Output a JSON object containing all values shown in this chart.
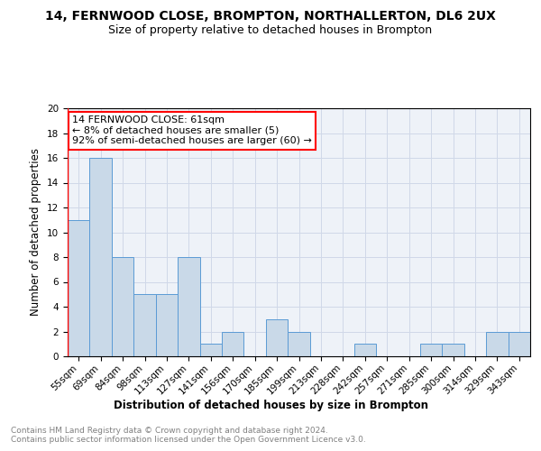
{
  "title": "14, FERNWOOD CLOSE, BROMPTON, NORTHALLERTON, DL6 2UX",
  "subtitle": "Size of property relative to detached houses in Brompton",
  "xlabel": "Distribution of detached houses by size in Brompton",
  "ylabel": "Number of detached properties",
  "categories": [
    "55sqm",
    "69sqm",
    "84sqm",
    "98sqm",
    "113sqm",
    "127sqm",
    "141sqm",
    "156sqm",
    "170sqm",
    "185sqm",
    "199sqm",
    "213sqm",
    "228sqm",
    "242sqm",
    "257sqm",
    "271sqm",
    "285sqm",
    "300sqm",
    "314sqm",
    "329sqm",
    "343sqm"
  ],
  "values": [
    11,
    16,
    8,
    5,
    5,
    8,
    1,
    2,
    0,
    3,
    2,
    0,
    0,
    1,
    0,
    0,
    1,
    1,
    0,
    2,
    2
  ],
  "bar_color": "#c9d9e8",
  "bar_edge_color": "#5b9bd5",
  "grid_color": "#d0d8e8",
  "background_color": "#eef2f8",
  "annotation_line1": "14 FERNWOOD CLOSE: 61sqm",
  "annotation_line2": "← 8% of detached houses are smaller (5)",
  "annotation_line3": "92% of semi-detached houses are larger (60) →",
  "annotation_box_color": "white",
  "annotation_box_edge": "red",
  "ylim": [
    0,
    20
  ],
  "yticks": [
    0,
    2,
    4,
    6,
    8,
    10,
    12,
    14,
    16,
    18,
    20
  ],
  "footer_text": "Contains HM Land Registry data © Crown copyright and database right 2024.\nContains public sector information licensed under the Open Government Licence v3.0.",
  "title_fontsize": 10,
  "subtitle_fontsize": 9,
  "axis_label_fontsize": 8.5,
  "tick_fontsize": 7.5,
  "annotation_fontsize": 8,
  "footer_fontsize": 6.5
}
